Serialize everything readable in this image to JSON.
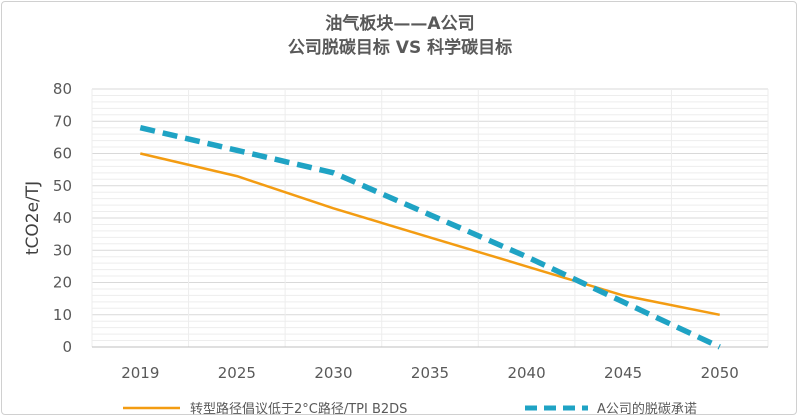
{
  "chart_data": {
    "type": "line",
    "title": "油气板块——A公司",
    "subtitle": "公司脱碳目标 VS 科学碳目标",
    "xlabel": "",
    "ylabel": "tCO2e/TJ",
    "x": [
      2019,
      2025,
      2030,
      2035,
      2040,
      2045,
      2050
    ],
    "ylim": [
      0,
      80
    ],
    "yticks": [
      0,
      10,
      20,
      30,
      40,
      50,
      60,
      70,
      80
    ],
    "grid": true,
    "legend_position": "bottom",
    "series": [
      {
        "name": "转型路径倡议低于2°C路径/TPI B2DS",
        "color": "#f39c12",
        "style": "solid",
        "values": [
          60,
          53,
          43,
          34,
          25,
          16,
          10
        ]
      },
      {
        "name": "A公司的脱碳承诺",
        "color": "#1fa3c4",
        "style": "dashed",
        "values": [
          68,
          61,
          54,
          41,
          28,
          14,
          0
        ]
      }
    ]
  }
}
